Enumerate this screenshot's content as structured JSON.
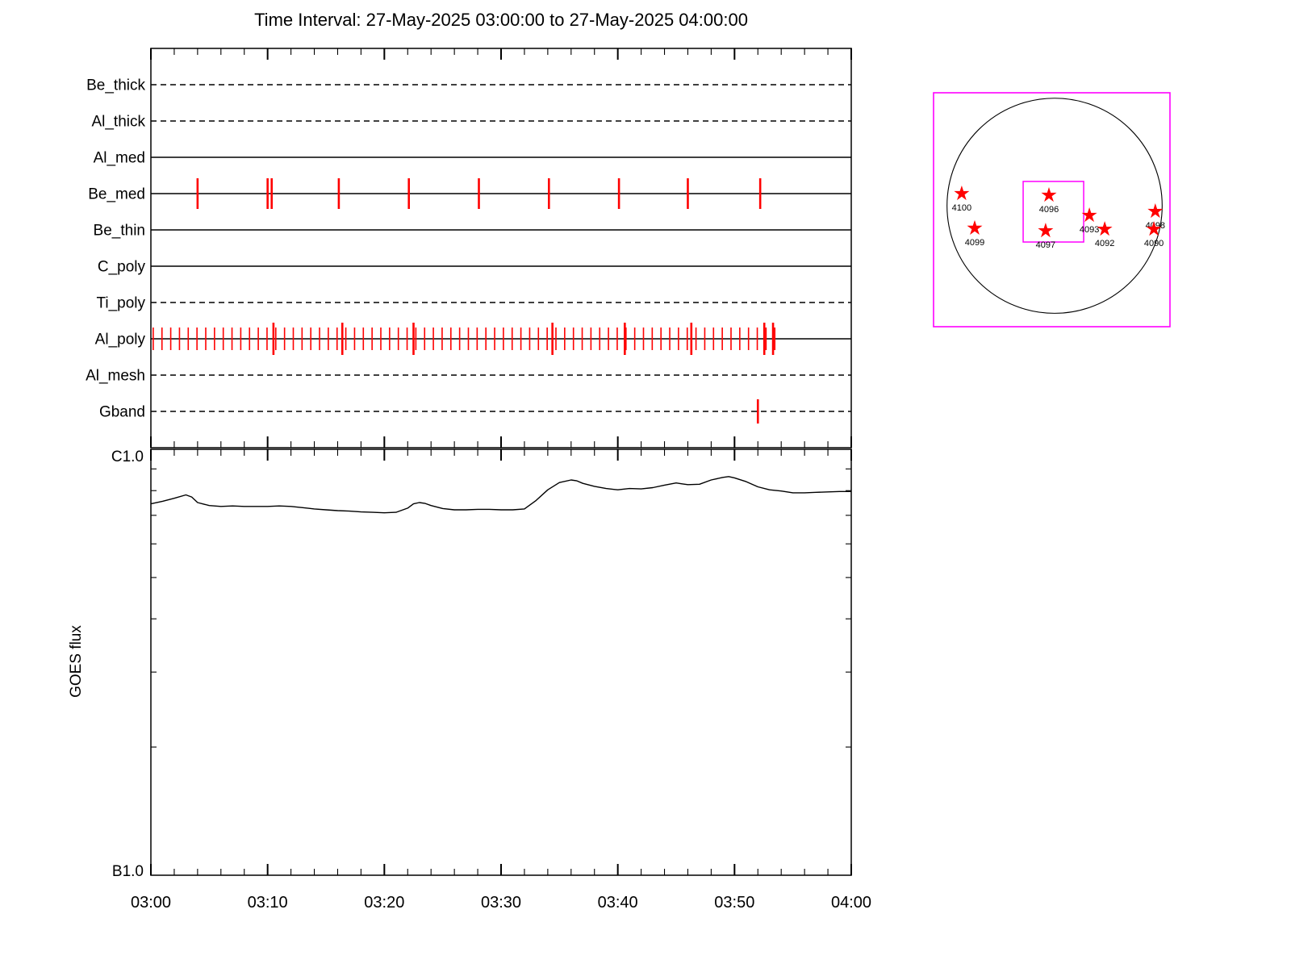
{
  "title": "Time Interval: 27-May-2025 03:00:00 to 27-May-2025 04:00:00",
  "colors": {
    "event": "#ff0000",
    "fov_box": "#ff00ff",
    "line": "#000000",
    "background": "#ffffff"
  },
  "chart_data": [
    {
      "type": "timeline",
      "name": "xrt-filter-exposure-timeline",
      "categories": [
        "Be_thick",
        "Al_thick",
        "Al_med",
        "Be_med",
        "Be_thin",
        "C_poly",
        "Ti_poly",
        "Al_poly",
        "Al_mesh",
        "Gband"
      ],
      "line_styles": [
        "dashed",
        "dashed",
        "solid",
        "solid",
        "solid",
        "solid",
        "dashed",
        "solid",
        "dashed",
        "dashed"
      ],
      "x_range_minutes": [
        0,
        60
      ],
      "events_minutes": {
        "Be_med": [
          4.0,
          10.0,
          10.35,
          16.1,
          22.1,
          28.1,
          34.1,
          40.1,
          46.0,
          52.2
        ],
        "Al_poly": [
          0.2,
          0.95,
          1.7,
          2.45,
          3.2,
          3.95,
          4.7,
          5.45,
          6.2,
          6.95,
          7.7,
          8.45,
          9.2,
          9.95,
          10.7,
          11.45,
          12.2,
          12.95,
          13.7,
          14.45,
          15.2,
          15.95,
          16.7,
          17.45,
          18.2,
          18.95,
          19.7,
          20.45,
          21.2,
          21.95,
          22.7,
          23.45,
          24.2,
          24.95,
          25.7,
          26.45,
          27.2,
          27.95,
          28.7,
          29.45,
          30.2,
          30.95,
          31.7,
          32.45,
          33.2,
          33.95,
          34.7,
          35.45,
          36.2,
          36.95,
          37.7,
          38.45,
          39.2,
          39.95,
          40.7,
          41.45,
          42.2,
          42.95,
          43.7,
          44.45,
          45.2,
          45.95,
          46.7,
          47.45,
          48.2,
          48.95,
          49.7,
          50.45,
          51.2,
          51.95,
          52.7,
          53.45
        ],
        "Al_poly_tall": [
          10.5,
          16.4,
          22.5,
          34.4,
          40.6,
          46.3,
          52.55,
          53.3
        ],
        "Gband": [
          52.0
        ]
      }
    },
    {
      "type": "line",
      "name": "goes-flux",
      "ylabel": "GOES flux",
      "y_axis_top_label": "C1.0",
      "y_axis_bottom_label": "B1.0",
      "y_scale": "log",
      "x_tick_labels": [
        "03:00",
        "03:10",
        "03:20",
        "03:30",
        "03:40",
        "03:50",
        "04:00"
      ],
      "x_range_minutes": [
        0,
        60
      ],
      "points_minute_vs_norm_flux": [
        [
          0,
          0.872
        ],
        [
          1,
          0.878
        ],
        [
          2,
          0.885
        ],
        [
          3,
          0.893
        ],
        [
          3.5,
          0.888
        ],
        [
          4,
          0.875
        ],
        [
          5,
          0.868
        ],
        [
          6,
          0.866
        ],
        [
          7,
          0.867
        ],
        [
          8,
          0.866
        ],
        [
          9,
          0.866
        ],
        [
          10,
          0.866
        ],
        [
          11,
          0.867
        ],
        [
          12,
          0.866
        ],
        [
          13,
          0.863
        ],
        [
          14,
          0.86
        ],
        [
          15,
          0.858
        ],
        [
          16,
          0.856
        ],
        [
          17,
          0.855
        ],
        [
          18,
          0.853
        ],
        [
          19,
          0.852
        ],
        [
          20,
          0.851
        ],
        [
          21,
          0.852
        ],
        [
          22,
          0.862
        ],
        [
          22.5,
          0.872
        ],
        [
          23,
          0.875
        ],
        [
          23.5,
          0.873
        ],
        [
          24,
          0.868
        ],
        [
          25,
          0.861
        ],
        [
          26,
          0.858
        ],
        [
          27,
          0.858
        ],
        [
          28,
          0.859
        ],
        [
          29,
          0.859
        ],
        [
          30,
          0.858
        ],
        [
          31,
          0.858
        ],
        [
          32,
          0.86
        ],
        [
          33,
          0.88
        ],
        [
          34,
          0.905
        ],
        [
          35,
          0.922
        ],
        [
          36,
          0.928
        ],
        [
          36.5,
          0.926
        ],
        [
          37,
          0.92
        ],
        [
          38,
          0.913
        ],
        [
          39,
          0.908
        ],
        [
          40,
          0.905
        ],
        [
          41,
          0.908
        ],
        [
          42,
          0.907
        ],
        [
          43,
          0.91
        ],
        [
          44,
          0.916
        ],
        [
          45,
          0.921
        ],
        [
          45.5,
          0.919
        ],
        [
          46,
          0.917
        ],
        [
          47,
          0.918
        ],
        [
          48,
          0.928
        ],
        [
          49,
          0.934
        ],
        [
          49.5,
          0.936
        ],
        [
          50,
          0.933
        ],
        [
          51,
          0.924
        ],
        [
          52,
          0.912
        ],
        [
          53,
          0.905
        ],
        [
          54,
          0.902
        ],
        [
          55,
          0.898
        ],
        [
          56,
          0.898
        ],
        [
          57,
          0.899
        ],
        [
          58,
          0.9
        ],
        [
          59,
          0.901
        ],
        [
          60,
          0.901
        ]
      ]
    },
    {
      "type": "scatter",
      "name": "solar-disk-active-regions",
      "points": [
        {
          "label": "4100",
          "x": 0.119,
          "y": 0.431
        },
        {
          "label": "4096",
          "x": 0.488,
          "y": 0.438
        },
        {
          "label": "4099",
          "x": 0.174,
          "y": 0.579
        },
        {
          "label": "4097",
          "x": 0.474,
          "y": 0.59
        },
        {
          "label": "4093",
          "x": 0.659,
          "y": 0.524
        },
        {
          "label": "4092",
          "x": 0.724,
          "y": 0.583
        },
        {
          "label": "4098",
          "x": 0.938,
          "y": 0.507
        },
        {
          "label": "4090",
          "x": 0.932,
          "y": 0.583
        }
      ],
      "disk": {
        "cx": 0.512,
        "cy": 0.483,
        "r": 0.455
      },
      "fov_box": {
        "x": 0.379,
        "y": 0.379,
        "w": 0.256,
        "h": 0.259
      }
    }
  ]
}
